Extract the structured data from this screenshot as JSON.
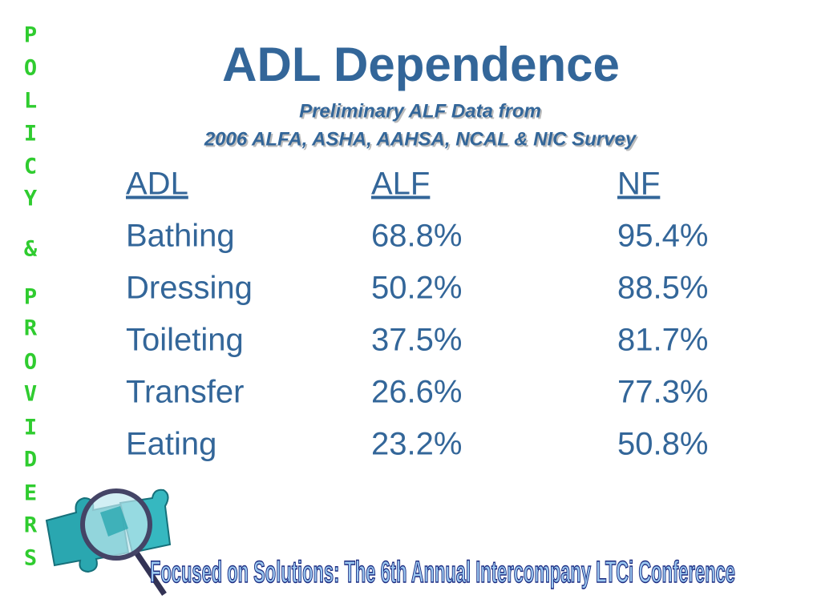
{
  "sidebar": [
    "P",
    "O",
    "L",
    "I",
    "C",
    "Y",
    "&",
    "P",
    "R",
    "O",
    "V",
    "I",
    "D",
    "E",
    "R",
    "S"
  ],
  "title": "ADL Dependence",
  "subtitle": [
    "Preliminary ALF Data from",
    "2006 ALFA, ASHA, AAHSA, NCAL & NIC Survey"
  ],
  "table": {
    "header": [
      "ADL",
      "ALF",
      "NF"
    ],
    "rows": [
      [
        "Bathing",
        "68.8%",
        "95.4%"
      ],
      [
        "Dressing",
        "50.2%",
        "88.5%"
      ],
      [
        "Toileting",
        "37.5%",
        "81.7%"
      ],
      [
        "Transfer",
        "26.6%",
        "77.3%"
      ],
      [
        "Eating",
        "23.2%",
        "50.8%"
      ]
    ]
  },
  "footer": "Focused on Solutions:  The 6th Annual Intercompany LTCi Conference"
}
